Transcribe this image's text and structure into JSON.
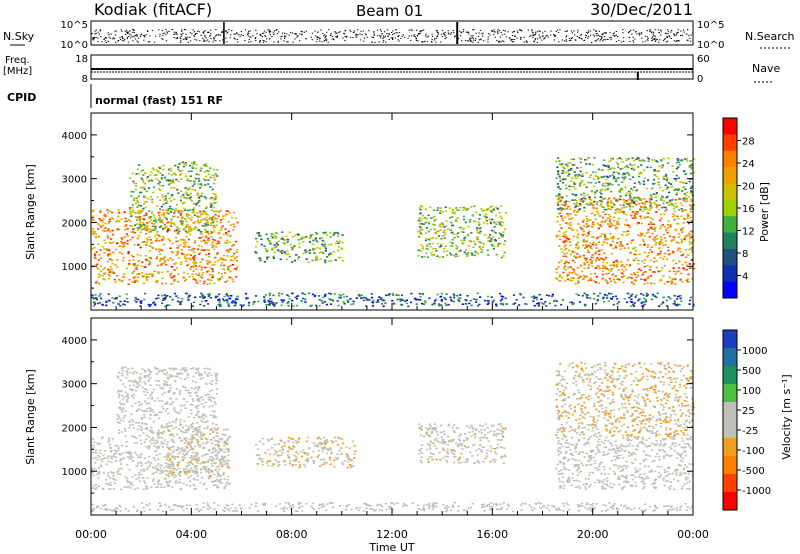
{
  "header": {
    "station": "Kodiak (fitACF)",
    "beam": "Beam 01",
    "date": "30/Dec/2011"
  },
  "panels": {
    "nsky": {
      "label": "N.Sky",
      "ticks": [
        "10^5",
        "10^0"
      ],
      "right_ticks": [
        "10^5",
        "10^0"
      ],
      "right_label": "N.Search"
    },
    "freq": {
      "label_line1": "Freq.",
      "label_line2": "[MHz]",
      "ticks": [
        "18",
        "8"
      ],
      "right_ticks": [
        "60",
        "0"
      ],
      "right_label": "Nave"
    },
    "cpid": {
      "label": "CPID",
      "text": "normal (fast) 151 RF"
    }
  },
  "colorbars": {
    "power": {
      "title": "Power [dB]",
      "ticks": [
        "28",
        "24",
        "20",
        "16",
        "12",
        "8",
        "4"
      ],
      "colors": [
        "#ff0000",
        "#ff4000",
        "#ff8000",
        "#f0a000",
        "#d0c000",
        "#9fd000",
        "#40b040",
        "#208060",
        "#1f5080",
        "#1030b0",
        "#0000ff"
      ]
    },
    "velocity": {
      "title": "Velocity [m s⁻¹]",
      "ticks": [
        "1000",
        "500",
        "100",
        "25",
        "-25",
        "-100",
        "-500",
        "-1000"
      ],
      "colors": [
        "#1a3fc0",
        "#2070a0",
        "#209060",
        "#50c040",
        "#c0c0b8",
        "#c0c0b8",
        "#f0a020",
        "#ff8000",
        "#ff4000",
        "#ff0000"
      ]
    }
  },
  "chart_data": [
    {
      "type": "heatmap",
      "name": "power",
      "ylabel": "Slant Range [km]",
      "ylim": [
        0,
        4500
      ],
      "yticks": [
        "4000",
        "3000",
        "2000",
        "1000"
      ],
      "xlim": [
        "00:00",
        "24:00"
      ],
      "colorbar_title": "Power [dB]",
      "colorbar_range": [
        0,
        30
      ],
      "echo_regions": [
        {
          "t_start": 0.0,
          "t_end": 5.8,
          "range_km": [
            600,
            2300
          ],
          "power_db": 22
        },
        {
          "t_start": 1.5,
          "t_end": 5.0,
          "range_km": [
            1800,
            3400
          ],
          "power_db": 14
        },
        {
          "t_start": 6.5,
          "t_end": 10.0,
          "range_km": [
            1100,
            1800
          ],
          "power_db": 12
        },
        {
          "t_start": 13.0,
          "t_end": 16.5,
          "range_km": [
            1200,
            2400
          ],
          "power_db": 14
        },
        {
          "t_start": 18.5,
          "t_end": 24.0,
          "range_km": [
            600,
            2600
          ],
          "power_db": 22
        },
        {
          "t_start": 18.5,
          "t_end": 24.0,
          "range_km": [
            2300,
            3500
          ],
          "power_db": 12
        },
        {
          "t_start": 0.0,
          "t_end": 24.0,
          "range_km": [
            100,
            400
          ],
          "power_db": 6
        }
      ]
    },
    {
      "type": "heatmap",
      "name": "velocity",
      "ylabel": "Slant Range [km]",
      "ylim": [
        0,
        4500
      ],
      "yticks": [
        "4000",
        "3000",
        "2000",
        "1000"
      ],
      "xlabel": "Time UT",
      "xticks": [
        "00:00",
        "04:00",
        "08:00",
        "12:00",
        "16:00",
        "20:00",
        "00:00"
      ],
      "colorbar_title": "Velocity [m s⁻¹]",
      "colorbar_range": [
        -1000,
        1000
      ],
      "echo_regions": [
        {
          "t_start": 0.0,
          "t_end": 5.5,
          "range_km": [
            600,
            1800
          ],
          "velocity": 0
        },
        {
          "t_start": 3.0,
          "t_end": 5.5,
          "range_km": [
            900,
            2000
          ],
          "velocity": -150
        },
        {
          "t_start": 1.0,
          "t_end": 5.0,
          "range_km": [
            1800,
            3400
          ],
          "velocity": 0
        },
        {
          "t_start": 6.5,
          "t_end": 10.5,
          "range_km": [
            1100,
            1800
          ],
          "velocity": -150
        },
        {
          "t_start": 13.0,
          "t_end": 16.5,
          "range_km": [
            1200,
            2100
          ],
          "velocity": -100
        },
        {
          "t_start": 18.5,
          "t_end": 24.0,
          "range_km": [
            600,
            1800
          ],
          "velocity": 0
        },
        {
          "t_start": 18.5,
          "t_end": 24.0,
          "range_km": [
            1800,
            3500
          ],
          "velocity": -200
        },
        {
          "t_start": 0.0,
          "t_end": 24.0,
          "range_km": [
            100,
            300
          ],
          "velocity": -50
        }
      ]
    }
  ]
}
